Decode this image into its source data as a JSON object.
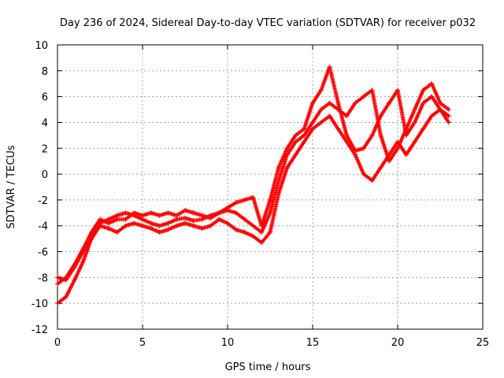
{
  "chart_data": {
    "type": "scatter",
    "title": "Day 236 of 2024, Sidereal Day-to-day VTEC variation (SDTVAR) for receiver p032",
    "xlabel": "GPS time / hours",
    "ylabel": "SDTVAR / TECUs",
    "xlim": [
      0,
      25
    ],
    "ylim": [
      -12,
      10
    ],
    "x_ticks": [
      "0",
      "5",
      "10",
      "15",
      "20",
      "25"
    ],
    "y_ticks": [
      "-12",
      "-10",
      "-8",
      "-6",
      "-4",
      "-2",
      "0",
      "2",
      "4",
      "6",
      "8",
      "10"
    ],
    "grid": true,
    "legend": "none",
    "marker": "+",
    "color": "#ff0000",
    "series": [
      {
        "x": [
          0,
          0.5,
          1,
          1.5,
          2,
          2.5,
          3,
          3.5,
          4,
          4.5,
          5,
          5.5,
          6,
          6.5,
          7,
          7.5,
          8,
          8.5,
          9,
          9.5,
          10,
          10.5,
          11,
          11.5,
          12,
          12.5,
          13,
          13.5,
          14,
          14.5,
          15,
          15.5,
          16,
          16.5,
          17,
          17.5,
          18,
          18.5,
          19,
          19.5,
          20,
          20.5,
          21,
          21.5,
          22,
          22.5,
          23
        ],
        "values": [
          -8.0,
          -8.2,
          -7.2,
          -6.0,
          -4.8,
          -3.8,
          -3.5,
          -3.2,
          -3.0,
          -3.2,
          -3.5,
          -3.8,
          -4.0,
          -3.8,
          -3.5,
          -3.4,
          -3.6,
          -3.5,
          -3.2,
          -3.0,
          -2.6,
          -2.2,
          -2.0,
          -1.8,
          -4.0,
          -2.0,
          0.5,
          2.0,
          3.0,
          3.5,
          5.5,
          6.5,
          8.3,
          5.5,
          3.0,
          1.8,
          2.0,
          3.0,
          4.5,
          5.5,
          6.5,
          3.0,
          4.0,
          5.5,
          6.0,
          5.0,
          4.5
        ]
      },
      {
        "x": [
          0,
          0.5,
          1,
          1.5,
          2,
          2.5,
          3,
          3.5,
          4,
          4.5,
          5,
          5.5,
          6,
          6.5,
          7,
          7.5,
          8,
          8.5,
          9,
          9.5,
          10,
          10.5,
          11,
          11.5,
          12,
          12.5,
          13,
          13.5,
          14,
          14.5,
          15,
          15.5,
          16,
          16.5,
          17,
          17.5,
          18,
          18.5,
          19,
          19.5,
          20,
          20.5,
          21,
          21.5,
          22,
          22.5,
          23
        ],
        "values": [
          -10.0,
          -9.5,
          -8.2,
          -6.8,
          -5.0,
          -4.0,
          -4.2,
          -4.5,
          -4.0,
          -3.8,
          -4.0,
          -4.2,
          -4.5,
          -4.3,
          -4.0,
          -3.8,
          -4.0,
          -4.2,
          -4.0,
          -3.5,
          -3.8,
          -4.3,
          -4.5,
          -4.8,
          -5.3,
          -4.5,
          -1.5,
          0.5,
          1.5,
          2.5,
          3.5,
          4.0,
          4.5,
          3.5,
          2.5,
          1.5,
          0.0,
          -0.5,
          0.5,
          1.5,
          2.5,
          1.5,
          2.5,
          3.5,
          4.5,
          5.0,
          4.0
        ]
      },
      {
        "x": [
          0,
          0.5,
          1,
          1.5,
          2,
          2.5,
          3,
          3.5,
          4,
          4.5,
          5,
          5.5,
          6,
          6.5,
          7,
          7.5,
          8,
          8.5,
          9,
          9.5,
          10,
          10.5,
          11,
          11.5,
          12,
          12.5,
          13,
          13.5,
          14,
          14.5,
          15,
          15.5,
          16,
          16.5,
          17,
          17.5,
          18,
          18.5,
          19,
          19.5,
          20,
          20.5,
          21,
          21.5,
          22,
          22.5,
          23
        ],
        "values": [
          -8.5,
          -8.0,
          -7.0,
          -5.8,
          -4.5,
          -3.5,
          -3.8,
          -3.5,
          -3.5,
          -3.0,
          -3.2,
          -3.0,
          -3.2,
          -3.0,
          -3.2,
          -2.8,
          -3.0,
          -3.2,
          -3.4,
          -3.0,
          -2.8,
          -3.0,
          -3.5,
          -4.0,
          -4.5,
          -3.0,
          -0.5,
          1.5,
          2.5,
          3.0,
          4.0,
          5.0,
          5.5,
          5.0,
          4.5,
          5.5,
          6.0,
          6.5,
          3.0,
          1.0,
          2.0,
          3.5,
          5.0,
          6.5,
          7.0,
          5.5,
          5.0
        ]
      }
    ]
  }
}
